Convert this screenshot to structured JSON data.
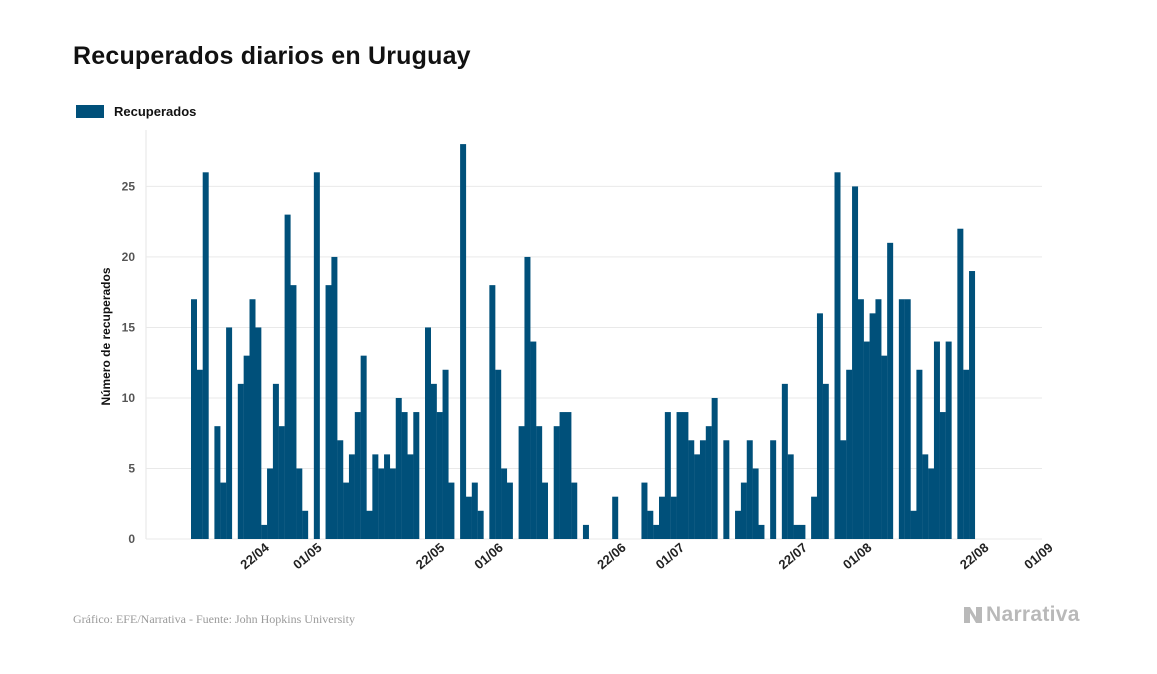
{
  "chart_data": {
    "type": "bar",
    "title": "Recuperados diarios en Uruguay",
    "legend": [
      "Recuperados"
    ],
    "ylabel": "Número de recuperados",
    "xlabel": "",
    "ylim": [
      0,
      29
    ],
    "yticks": [
      0,
      5,
      10,
      15,
      20,
      25
    ],
    "x_tick_labels": [
      "22/04",
      "01/05",
      "22/05",
      "01/06",
      "22/06",
      "01/07",
      "22/07",
      "01/08",
      "22/08",
      "01/09"
    ],
    "x_tick_days": [
      13,
      22,
      43,
      53,
      74,
      84,
      105,
      116,
      136,
      147
    ],
    "first_date": "09/04",
    "values": [
      17,
      12,
      26,
      0,
      8,
      4,
      15,
      0,
      11,
      13,
      17,
      15,
      1,
      5,
      11,
      8,
      23,
      18,
      5,
      2,
      0,
      26,
      0,
      18,
      20,
      7,
      4,
      6,
      9,
      13,
      2,
      6,
      5,
      6,
      5,
      10,
      9,
      6,
      9,
      0,
      15,
      11,
      9,
      12,
      4,
      0,
      28,
      3,
      4,
      2,
      0,
      18,
      12,
      5,
      4,
      0,
      8,
      20,
      14,
      8,
      4,
      0,
      8,
      9,
      9,
      4,
      0,
      1,
      0,
      0,
      0,
      0,
      3,
      0,
      0,
      0,
      0,
      4,
      2,
      1,
      3,
      9,
      3,
      9,
      9,
      7,
      6,
      7,
      8,
      10,
      0,
      7,
      0,
      2,
      4,
      7,
      5,
      1,
      0,
      7,
      0,
      11,
      6,
      1,
      1,
      0,
      3,
      16,
      11,
      0,
      26,
      7,
      12,
      25,
      17,
      14,
      16,
      17,
      13,
      21,
      0,
      17,
      17,
      2,
      12,
      6,
      5,
      14,
      9,
      14,
      0,
      22,
      12,
      19
    ],
    "color": "#00507a",
    "grid": "horizontal"
  },
  "source_text": "Gráfico: EFE/Narrativa - Fuente: John Hopkins University",
  "logo_text": "Narrativa"
}
